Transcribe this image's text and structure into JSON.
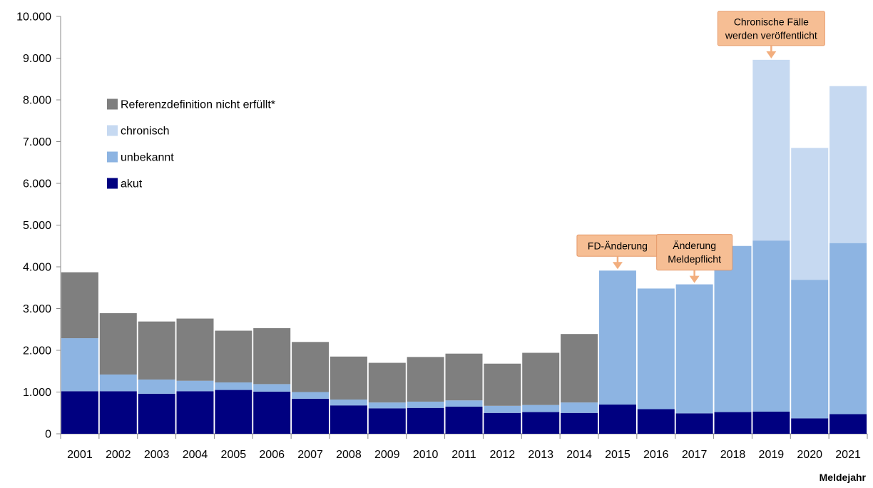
{
  "chart_data": {
    "type": "bar",
    "stacked": true,
    "title": "",
    "xlabel": "Meldejahr",
    "ylabel": "",
    "ylim": [
      0,
      10000
    ],
    "y_ticks": [
      0,
      1000,
      2000,
      3000,
      4000,
      5000,
      6000,
      7000,
      8000,
      9000,
      10000
    ],
    "y_tick_labels": [
      "0",
      "1.000",
      "2.000",
      "3.000",
      "4.000",
      "5.000",
      "6.000",
      "7.000",
      "8.000",
      "9.000",
      "10.000"
    ],
    "grid": false,
    "legend_position": "upper-left",
    "categories": [
      "2001",
      "2002",
      "2003",
      "2004",
      "2005",
      "2006",
      "2007",
      "2008",
      "2009",
      "2010",
      "2011",
      "2012",
      "2013",
      "2014",
      "2015",
      "2016",
      "2017",
      "2018",
      "2019",
      "2020",
      "2021"
    ],
    "series": [
      {
        "name": "akut",
        "color": "#000080",
        "values": [
          1020,
          1020,
          960,
          1020,
          1050,
          1010,
          840,
          680,
          610,
          620,
          650,
          500,
          520,
          500,
          700,
          590,
          490,
          520,
          530,
          370,
          470
        ]
      },
      {
        "name": "unbekannt",
        "color": "#8DB4E2",
        "values": [
          1270,
          400,
          340,
          250,
          180,
          180,
          160,
          140,
          140,
          150,
          150,
          170,
          170,
          250,
          3210,
          2890,
          3090,
          3980,
          4100,
          3320,
          4100
        ]
      },
      {
        "name": "chronisch",
        "color": "#C6D9F1",
        "values": [
          0,
          0,
          0,
          0,
          0,
          0,
          0,
          0,
          0,
          0,
          0,
          0,
          0,
          0,
          0,
          0,
          0,
          0,
          4330,
          3160,
          3760
        ]
      },
      {
        "name": "Referenzdefinition nicht erfüllt*",
        "color": "#7F7F7F",
        "values": [
          1580,
          1470,
          1390,
          1490,
          1240,
          1340,
          1200,
          1030,
          950,
          1070,
          1120,
          1010,
          1250,
          1640,
          0,
          0,
          0,
          0,
          0,
          0,
          0
        ]
      }
    ],
    "legend_order": [
      "Referenzdefinition nicht erfüllt*",
      "chronisch",
      "unbekannt",
      "akut"
    ],
    "annotations": [
      {
        "lines": [
          "FD-Änderung"
        ],
        "category": "2015"
      },
      {
        "lines": [
          "Änderung",
          "Meldepflicht"
        ],
        "category": "2017"
      },
      {
        "lines": [
          "Chronische Fälle",
          "werden veröffentlicht"
        ],
        "category": "2019"
      }
    ],
    "annotation_style": {
      "fill": "#F6BE94",
      "stroke": "#E69A6A",
      "arrow": "#F2AE7E"
    }
  }
}
